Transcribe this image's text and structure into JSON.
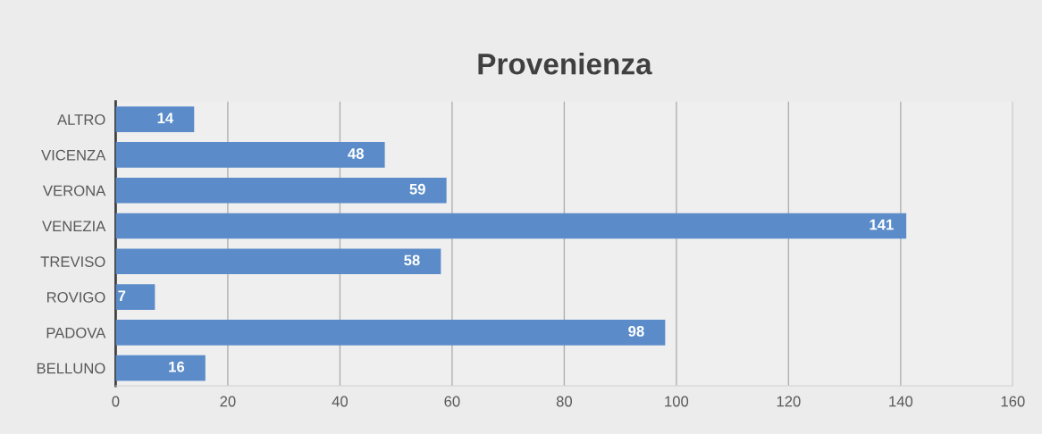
{
  "chart_data": {
    "type": "bar",
    "orientation": "horizontal",
    "title": "Provenienza",
    "categories": [
      "ALTRO",
      "VICENZA",
      "VERONA",
      "VENEZIA",
      "TREVISO",
      "ROVIGO",
      "PADOVA",
      "BELLUNO"
    ],
    "values": [
      14,
      48,
      59,
      141,
      58,
      7,
      98,
      16
    ],
    "color": "#5b8cc9",
    "xlim": [
      0,
      160
    ],
    "xticks": [
      0,
      20,
      40,
      60,
      80,
      100,
      120,
      140,
      160
    ],
    "grid": "x",
    "data_labels": true
  }
}
